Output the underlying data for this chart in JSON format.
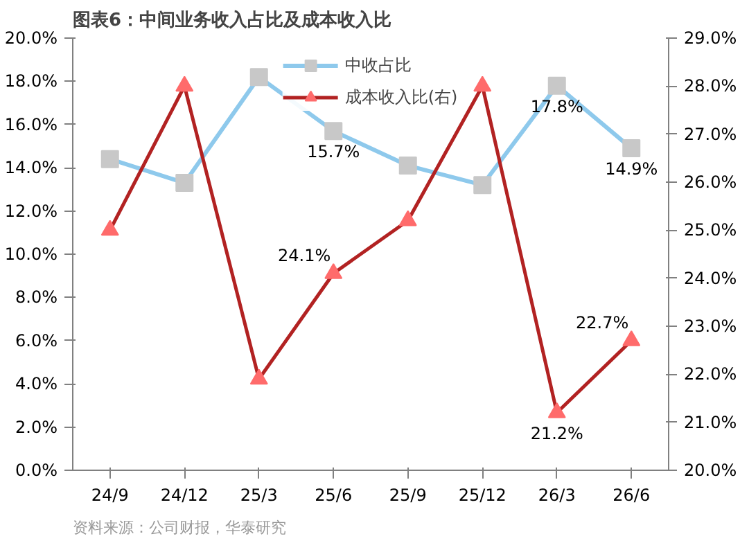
{
  "chart_data": {
    "type": "line",
    "title": "图表6：中间业务收入占比及成本收入比",
    "categories": [
      "24/9",
      "24/12",
      "25/3",
      "25/6",
      "25/9",
      "25/12",
      "26/3",
      "26/6"
    ],
    "series": [
      {
        "name": "中收占比",
        "color": "#8ec9ec",
        "marker": "square",
        "colors": [
          "#c8c8c8",
          "#c8c8c8",
          "#c8c8c8",
          "#c8c8c8",
          "#c8c8c8",
          "#c8c8c8",
          "#c8c8c8",
          "#c8c8c8"
        ],
        "values": [
          14.4,
          13.3,
          18.2,
          15.7,
          14.1,
          13.2,
          17.8,
          14.9
        ],
        "value_labels": [
          null,
          null,
          null,
          "15.7%",
          null,
          null,
          "17.8%",
          "14.9%"
        ]
      },
      {
        "name": "成本收入比(右)",
        "color": "#b22222",
        "marker": "triangle",
        "colors": [
          "#ff6b6b",
          "#ff6b6b",
          "#ff6b6b",
          "#ff6b6b",
          "#ff6b6b",
          "#ff6b6b",
          "#ff6b6b",
          "#ff6b6b"
        ],
        "axis": "y2",
        "values": [
          25.0,
          28.0,
          21.9,
          24.1,
          25.2,
          28.0,
          21.2,
          22.7
        ],
        "value_labels": [
          null,
          null,
          null,
          "24.1%",
          null,
          null,
          "21.2%",
          "22.7%"
        ]
      }
    ],
    "ylim": [
      0,
      20
    ],
    "yticks": [
      {
        "value": 0,
        "label": "0.0%"
      },
      {
        "value": 2,
        "label": "2.0%"
      },
      {
        "value": 4,
        "label": "4.0%"
      },
      {
        "value": 6,
        "label": "6.0%"
      },
      {
        "value": 8,
        "label": "8.0%"
      },
      {
        "value": 10,
        "label": "10.0%"
      },
      {
        "value": 12,
        "label": "12.0%"
      },
      {
        "value": 14,
        "label": "14.0%"
      },
      {
        "value": 16,
        "label": "16.0%"
      },
      {
        "value": 18,
        "label": "18.0%"
      },
      {
        "value": 20,
        "label": "20.0%"
      }
    ],
    "y2lim": [
      20,
      29
    ],
    "y2ticks": [
      {
        "value": 20,
        "label": "20.0%"
      },
      {
        "value": 21,
        "label": "21.0%"
      },
      {
        "value": 22,
        "label": "22.0%"
      },
      {
        "value": 23,
        "label": "23.0%"
      },
      {
        "value": 24,
        "label": "24.0%"
      },
      {
        "value": 25,
        "label": "25.0%"
      },
      {
        "value": 26,
        "label": "26.0%"
      },
      {
        "value": 27,
        "label": "27.0%"
      },
      {
        "value": 28,
        "label": "28.0%"
      },
      {
        "value": 29,
        "label": "29.0%"
      }
    ],
    "grid": false,
    "legend": "top",
    "line_style": "solid",
    "annotations": [
      "资料来源：公司财报，华泰研究"
    ]
  }
}
